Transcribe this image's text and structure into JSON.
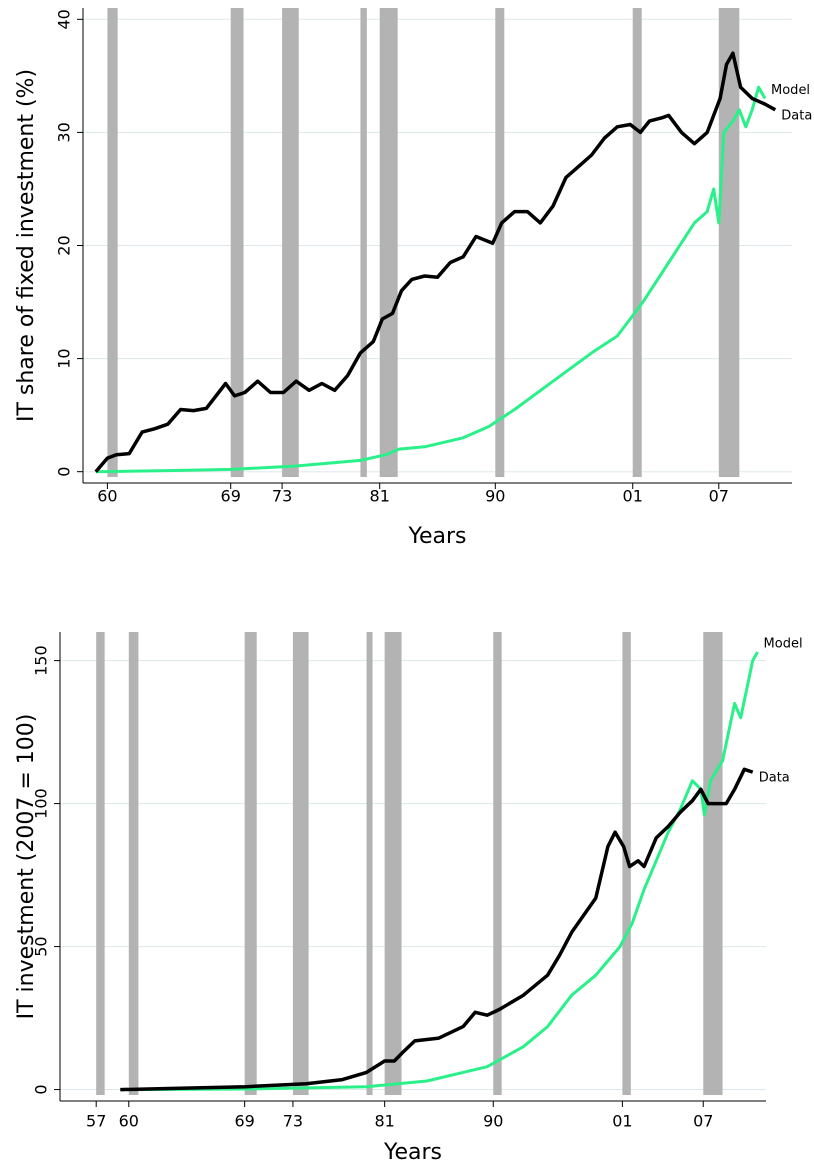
{
  "chart_data": [
    {
      "type": "line",
      "x_label": "Years",
      "y_label": "IT share of fixed investment (%)",
      "xlim": [
        1958.4,
        2013.6
      ],
      "ylim": [
        -1,
        41
      ],
      "xticks": [
        {
          "value": 1960.3,
          "label": "60"
        },
        {
          "value": 1969.9,
          "label": "69"
        },
        {
          "value": 1973.9,
          "label": "73"
        },
        {
          "value": 1981.5,
          "label": "81"
        },
        {
          "value": 1990.5,
          "label": "90"
        },
        {
          "value": 2001.2,
          "label": "01"
        },
        {
          "value": 2007.9,
          "label": "07"
        }
      ],
      "yticks": [
        0,
        10,
        20,
        30,
        40
      ],
      "grid": true,
      "recessions": [
        [
          1960.3,
          1961.1
        ],
        [
          1969.9,
          1970.9
        ],
        [
          1973.9,
          1975.2
        ],
        [
          1980.0,
          1980.5
        ],
        [
          1981.5,
          1982.9
        ],
        [
          1990.5,
          1991.2
        ],
        [
          2001.2,
          2001.9
        ],
        [
          2007.9,
          2009.5
        ]
      ],
      "series": [
        {
          "name": "Model",
          "color": "#2af08a",
          "x": [
            1959.4,
            1965,
            1970,
            1975,
            1980,
            1982,
            1983,
            1985,
            1988,
            1990,
            1992,
            1995,
            1998,
            2000,
            2001,
            2002,
            2004,
            2006,
            2007,
            2007.5,
            2007.9,
            2008.3,
            2009,
            2009.5,
            2010,
            2010.5,
            2011,
            2011.5
          ],
          "values": [
            0,
            0.1,
            0.2,
            0.5,
            1.0,
            1.5,
            2.0,
            2.2,
            3.0,
            4.0,
            5.5,
            8,
            10.5,
            12,
            13.5,
            15,
            18.5,
            22,
            23,
            25,
            22,
            30,
            31,
            32,
            30.5,
            32,
            34,
            33
          ]
        },
        {
          "name": "Data",
          "color": "#000000",
          "x": [
            1959.4,
            1960.3,
            1961,
            1962,
            1963,
            1964,
            1965,
            1966,
            1967,
            1968,
            1969.5,
            1970.2,
            1971,
            1972,
            1973,
            1974,
            1975,
            1976,
            1977,
            1978,
            1979,
            1980,
            1981,
            1981.7,
            1982.5,
            1983.2,
            1984,
            1985,
            1986,
            1987,
            1988,
            1989,
            1990.3,
            1991,
            1992,
            1993,
            1994,
            1995,
            1996,
            1997,
            1998,
            1999,
            2000,
            2001,
            2001.8,
            2002.5,
            2003.5,
            2004,
            2005,
            2006,
            2007,
            2008,
            2008.5,
            2009,
            2009.6,
            2010.5,
            2011.5,
            2012.3
          ],
          "values": [
            0,
            1.2,
            1.5,
            1.6,
            3.5,
            3.8,
            4.2,
            5.5,
            5.4,
            5.6,
            7.8,
            6.7,
            7.0,
            8.0,
            7.0,
            7.0,
            8.0,
            7.2,
            7.8,
            7.2,
            8.5,
            10.5,
            11.5,
            13.5,
            14,
            16,
            17,
            17.3,
            17.2,
            18.5,
            19,
            20.8,
            20.2,
            22,
            23,
            23,
            22,
            23.5,
            26,
            27,
            28,
            29.5,
            30.5,
            30.7,
            30.0,
            31,
            31.3,
            31.5,
            30,
            29,
            30,
            33,
            36,
            37,
            34,
            33,
            32.5,
            32
          ]
        }
      ]
    },
    {
      "type": "line",
      "x_label": "Years",
      "y_label": "IT investment (2007 = 100)",
      "xlim": [
        1954.6,
        2013.1
      ],
      "ylim": [
        -4,
        160
      ],
      "xticks": [
        {
          "value": 1957.6,
          "label": "57"
        },
        {
          "value": 1960.3,
          "label": "60"
        },
        {
          "value": 1969.9,
          "label": "69"
        },
        {
          "value": 1973.9,
          "label": "73"
        },
        {
          "value": 1981.5,
          "label": "81"
        },
        {
          "value": 1990.5,
          "label": "90"
        },
        {
          "value": 2001.2,
          "label": "01"
        },
        {
          "value": 2007.9,
          "label": "07"
        }
      ],
      "yticks": [
        0,
        50,
        100,
        150
      ],
      "grid": true,
      "recessions": [
        [
          1957.6,
          1958.3
        ],
        [
          1960.3,
          1961.1
        ],
        [
          1969.9,
          1970.9
        ],
        [
          1973.9,
          1975.2
        ],
        [
          1980.0,
          1980.5
        ],
        [
          1981.5,
          1982.9
        ],
        [
          1990.5,
          1991.2
        ],
        [
          2001.2,
          2001.9
        ],
        [
          2007.9,
          2009.5
        ]
      ],
      "series": [
        {
          "name": "Model",
          "color": "#2af08a",
          "x": [
            1959.6,
            1970,
            1980,
            1985,
            1988,
            1990,
            1993,
            1995,
            1997,
            1999,
            2000,
            2001,
            2002,
            2003,
            2004,
            2005,
            2006,
            2007,
            2007.7,
            2008,
            2008.5,
            2009.5,
            2010,
            2010.5,
            2011,
            2011.5,
            2012,
            2012.4
          ],
          "values": [
            0,
            0.2,
            1,
            3,
            6,
            8,
            15,
            22,
            33,
            40,
            45,
            50,
            58,
            70,
            80,
            90,
            98,
            108,
            105,
            96,
            108,
            115,
            125,
            135,
            130,
            140,
            150,
            153
          ]
        },
        {
          "name": "Data",
          "color": "#000000",
          "x": [
            1959.6,
            1965,
            1970,
            1975,
            1978,
            1980,
            1981.5,
            1982.3,
            1983,
            1984,
            1986,
            1988,
            1989,
            1990,
            1991,
            1993,
            1995,
            1996,
            1997,
            1999,
            2000,
            2000.6,
            2001.3,
            2001.8,
            2002.5,
            2003,
            2004,
            2005,
            2006,
            2007,
            2007.7,
            2008.3,
            2009,
            2009.8,
            2010.5,
            2011.3,
            2012
          ],
          "values": [
            0,
            0.5,
            1,
            2,
            3.5,
            6,
            10,
            10,
            13,
            17,
            18,
            22,
            27,
            26,
            28,
            33,
            40,
            47,
            55,
            67,
            85,
            90,
            85,
            78,
            80,
            78,
            88,
            92,
            97,
            101,
            105,
            100,
            100,
            100,
            105,
            112,
            111
          ]
        }
      ]
    }
  ]
}
